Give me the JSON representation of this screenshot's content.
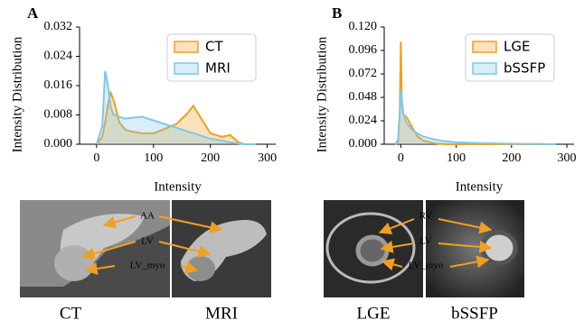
{
  "chart_data": [
    {
      "type": "area",
      "panel_label": "A",
      "x_label": "Intensity",
      "y_label": "Intensity Distribution",
      "x": [
        0,
        10,
        15,
        20,
        25,
        30,
        40,
        50,
        60,
        80,
        100,
        120,
        140,
        160,
        170,
        180,
        200,
        220,
        235,
        250,
        260,
        280
      ],
      "series": [
        {
          "name": "CT",
          "color": "#f0a020",
          "values": [
            0,
            0.002,
            0.006,
            0.011,
            0.014,
            0.012,
            0.006,
            0.004,
            0.0035,
            0.003,
            0.003,
            0.0042,
            0.0055,
            0.0085,
            0.0105,
            0.008,
            0.003,
            0.002,
            0.0025,
            0.0005,
            0,
            0
          ]
        },
        {
          "name": "MRI",
          "color": "#7ec8e8",
          "values": [
            0,
            0.005,
            0.02,
            0.016,
            0.01,
            0.008,
            0.0075,
            0.007,
            0.0072,
            0.0075,
            0.0065,
            0.0055,
            0.0045,
            0.0035,
            0.003,
            0.0025,
            0.0015,
            0.001,
            0.0005,
            0.0002,
            0,
            0
          ]
        }
      ],
      "xlim": [
        -30,
        315
      ],
      "xticks": [
        0,
        100,
        200,
        300
      ],
      "ylim": [
        0,
        0.032
      ],
      "yticks": [
        {
          "value": 0,
          "label": "0.000"
        },
        0.008,
        0.016,
        0.024,
        0.032
      ],
      "legend": "upper right"
    },
    {
      "type": "area",
      "panel_label": "B",
      "x_label": "Intensity",
      "y_label": "Intensity Distribution",
      "x": [
        -10,
        -5,
        -2,
        0,
        2,
        5,
        10,
        20,
        30,
        40,
        60,
        80,
        100,
        150,
        200,
        250,
        280
      ],
      "series": [
        {
          "name": "LGE",
          "color": "#f0a020",
          "values": [
            0,
            0.002,
            0.03,
            0.105,
            0.04,
            0.03,
            0.028,
            0.018,
            0.008,
            0.004,
            0.001,
            0,
            0,
            0,
            0,
            0,
            0
          ]
        },
        {
          "name": "bSSFP",
          "color": "#7ec8e8",
          "values": [
            0,
            0.005,
            0.03,
            0.056,
            0.045,
            0.03,
            0.022,
            0.015,
            0.011,
            0.008,
            0.005,
            0.003,
            0.002,
            0.001,
            0.0005,
            0.0002,
            0
          ]
        }
      ],
      "xlim": [
        -30,
        313
      ],
      "xticks": [
        0,
        100,
        200,
        300
      ],
      "ylim": [
        0,
        0.12
      ],
      "yticks": [
        {
          "value": 0,
          "label": "0.000"
        },
        0.024,
        0.048,
        0.072,
        0.096,
        {
          "value": 0.12,
          "label": "0.120"
        }
      ],
      "legend": "upper right"
    }
  ],
  "images": [
    {
      "caption": "CT",
      "annotations": [
        "AA",
        "LV",
        "LV_myo"
      ]
    },
    {
      "caption": "MRI"
    },
    {
      "caption": "LGE",
      "annotations": [
        "RV",
        "LV",
        "LV_myo"
      ]
    },
    {
      "caption": "bSSFP"
    }
  ]
}
